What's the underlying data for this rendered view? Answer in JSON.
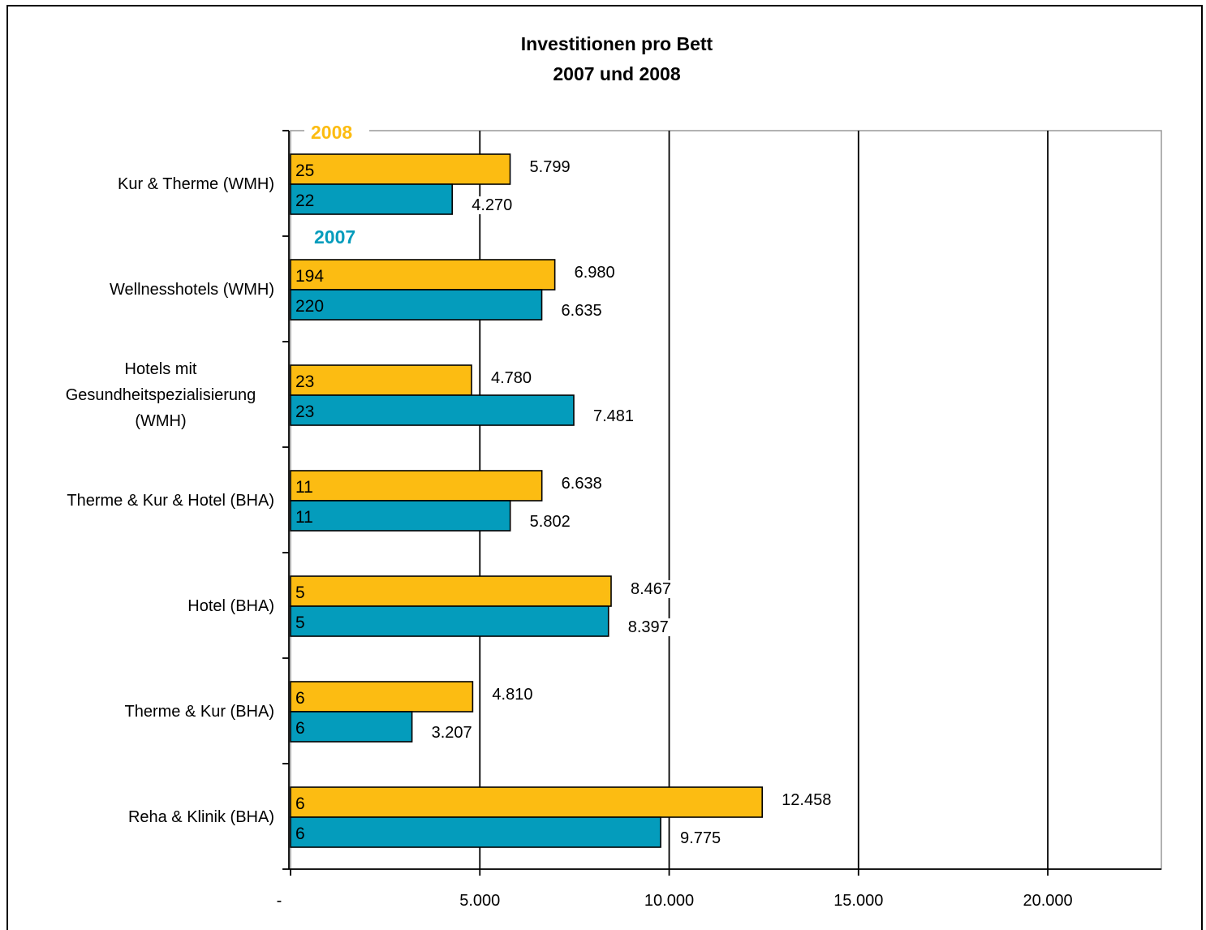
{
  "chart_data": {
    "type": "bar",
    "orientation": "horizontal",
    "title": [
      "Investitionen pro Bett",
      "2007 und 2008"
    ],
    "categories": [
      [
        "Kur & Therme (WMH)"
      ],
      [
        "Wellnesshotels (WMH)"
      ],
      [
        "Hotels mit",
        "Gesundheitspezialisierung",
        "(WMH)"
      ],
      [
        "Therme & Kur & Hotel (BHA)"
      ],
      [
        "Hotel (BHA)"
      ],
      [
        "Therme & Kur (BHA)"
      ],
      [
        "Reha & Klinik (BHA)"
      ]
    ],
    "series": [
      {
        "name": "2008",
        "color": "#FCBC12",
        "values": [
          5799,
          6980,
          4780,
          6638,
          8467,
          4810,
          12458
        ],
        "value_labels": [
          "5.799",
          "6.980",
          "4.780",
          "6.638",
          "8.467",
          "4.810",
          "12.458"
        ],
        "counts": [
          "25",
          "194",
          "23",
          "11",
          "5",
          "6",
          "6"
        ]
      },
      {
        "name": "2007",
        "color": "#049CBC",
        "values": [
          4270,
          6635,
          7481,
          5802,
          8397,
          3207,
          9775
        ],
        "value_labels": [
          "4.270",
          "6.635",
          "7.481",
          "5.802",
          "8.397",
          "3.207",
          "9.775"
        ],
        "counts": [
          "22",
          "220",
          "23",
          "11",
          "5",
          "6",
          "6"
        ]
      }
    ],
    "xlim": [
      0,
      23000
    ],
    "xticks": [
      0,
      5000,
      10000,
      15000,
      20000
    ],
    "xtick_labels": [
      "-",
      "5.000",
      "10.000",
      "15.000",
      "20.000"
    ],
    "grid": true,
    "legend": "inline labels at top-left of plot"
  }
}
